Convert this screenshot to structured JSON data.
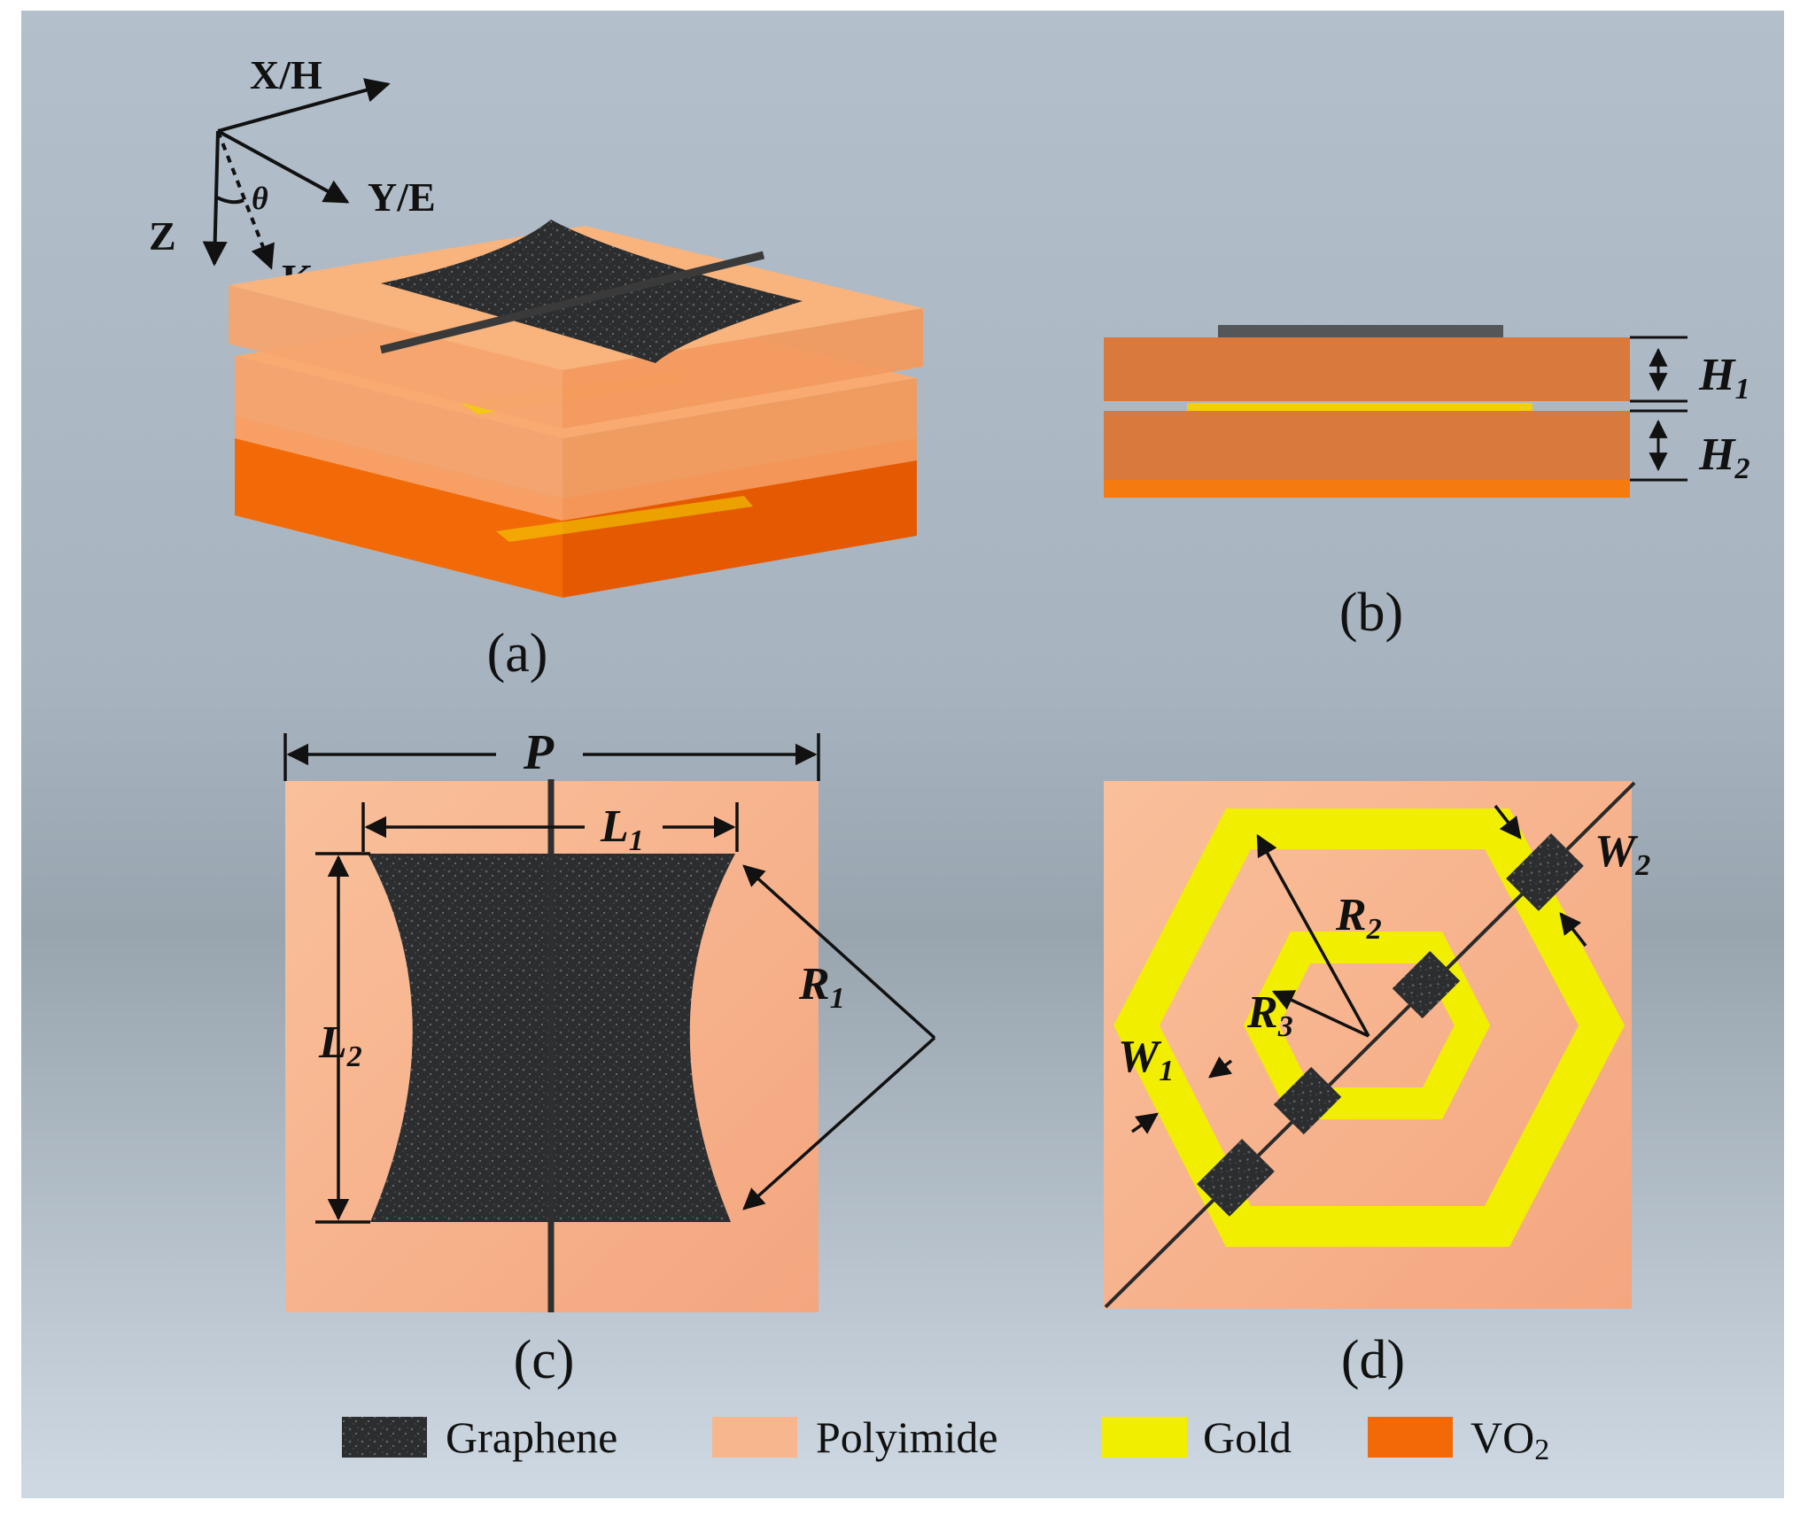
{
  "axes": {
    "x_label": "X/H",
    "y_label": "Y/E",
    "z_label": "Z",
    "k_label": "K",
    "angle_label": "θ"
  },
  "panels": {
    "a": "(a)",
    "b": "(b)",
    "c": "(c)",
    "d": "(d)"
  },
  "dimensions": {
    "H1": {
      "main": "H",
      "sub": "1"
    },
    "H2": {
      "main": "H",
      "sub": "2"
    },
    "P": {
      "main": "P"
    },
    "L1": {
      "main": "L",
      "sub": "1"
    },
    "L2": {
      "main": "L",
      "sub": "2"
    },
    "R1": {
      "main": "R",
      "sub": "1"
    },
    "R2": {
      "main": "R",
      "sub": "2"
    },
    "R3": {
      "main": "R",
      "sub": "3"
    },
    "W1": {
      "main": "W",
      "sub": "1"
    },
    "W2": {
      "main": "W",
      "sub": "2"
    }
  },
  "legend": {
    "graphene": {
      "label": "Graphene",
      "color": "#2f3133"
    },
    "polyimide": {
      "label": "Polyimide",
      "color": "#f8b68f"
    },
    "gold": {
      "label": "Gold",
      "color": "#f2ee00"
    },
    "vo2": {
      "label": "VO",
      "sub": "2",
      "color": "#f26a08"
    }
  }
}
